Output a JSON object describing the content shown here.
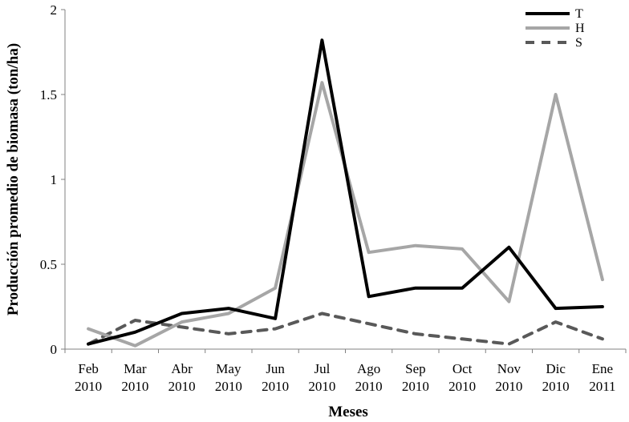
{
  "chart_data": {
    "type": "line",
    "title": "",
    "xlabel": "Meses",
    "ylabel": "Producción promedio de biomasa  (ton/ha)",
    "categories": [
      [
        "Feb",
        "2010"
      ],
      [
        "Mar",
        "2010"
      ],
      [
        "Abr",
        "2010"
      ],
      [
        "May",
        "2010"
      ],
      [
        "Jun",
        "2010"
      ],
      [
        "Jul",
        "2010"
      ],
      [
        "Ago",
        "2010"
      ],
      [
        "Sep",
        "2010"
      ],
      [
        "Oct",
        "2010"
      ],
      [
        "Nov",
        "2010"
      ],
      [
        "Dic",
        "2010"
      ],
      [
        "Ene",
        "2011"
      ]
    ],
    "yticks": [
      "0",
      "0.5",
      "1",
      "1.5",
      "2"
    ],
    "ylim": [
      0,
      2
    ],
    "grid": false,
    "legend": "top-right",
    "series": [
      {
        "name": "T",
        "color": "#000000",
        "style": "solid",
        "values": [
          0.03,
          0.1,
          0.21,
          0.24,
          0.18,
          1.82,
          0.31,
          0.36,
          0.36,
          0.6,
          0.24,
          0.25
        ]
      },
      {
        "name": "H",
        "color": "#a6a6a6",
        "style": "solid",
        "values": [
          0.12,
          0.02,
          0.16,
          0.21,
          0.36,
          1.57,
          0.57,
          0.61,
          0.59,
          0.28,
          1.5,
          0.41
        ]
      },
      {
        "name": "S",
        "color": "#595959",
        "style": "dashed",
        "values": [
          0.03,
          0.17,
          0.13,
          0.09,
          0.12,
          0.21,
          0.15,
          0.09,
          0.06,
          0.03,
          0.16,
          0.06
        ]
      }
    ]
  }
}
